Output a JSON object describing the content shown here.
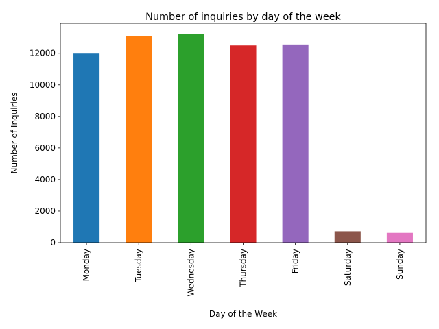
{
  "chart_data": {
    "type": "bar",
    "title": "Number of inquiries by day of the week",
    "xlabel": "Day of the Week",
    "ylabel": "Number of Inquiries",
    "categories": [
      "Monday",
      "Tuesday",
      "Wednesday",
      "Thursday",
      "Friday",
      "Saturday",
      "Sunday"
    ],
    "values": [
      11980,
      13080,
      13220,
      12500,
      12560,
      720,
      620
    ],
    "colors": [
      "#1f77b4",
      "#ff7f0e",
      "#2ca02c",
      "#d62728",
      "#9467bd",
      "#8c564b",
      "#e377c2"
    ],
    "ylim": [
      0,
      13900
    ],
    "yticks": [
      0,
      2000,
      4000,
      6000,
      8000,
      10000,
      12000
    ],
    "ytick_labels": [
      "0",
      "2000",
      "4000",
      "6000",
      "8000",
      "10000",
      "12000"
    ],
    "grid": false,
    "legend": false
  }
}
